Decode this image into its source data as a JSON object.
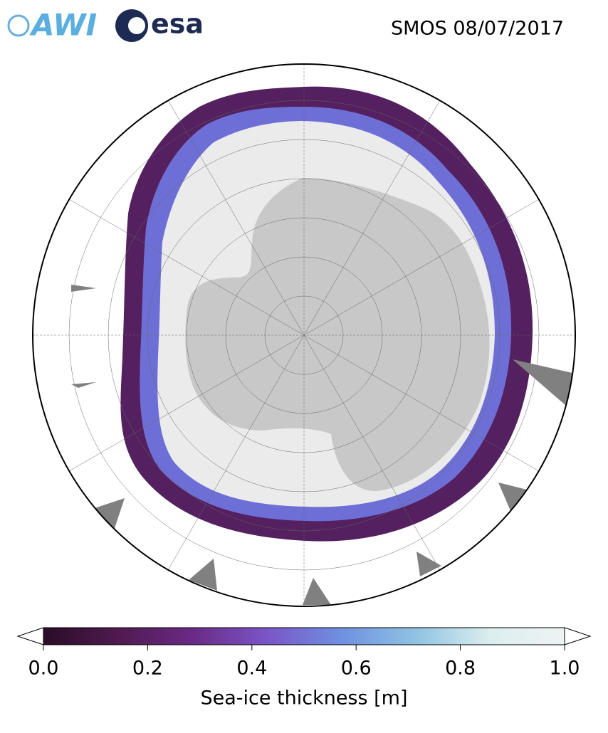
{
  "header": {
    "title": "SMOS 08/07/2017",
    "logos": [
      "AWI",
      "esa"
    ]
  },
  "colorbar": {
    "label": "Sea-ice thickness [m]",
    "lim": [
      0,
      1
    ],
    "ticks": [
      {
        "value": 0,
        "label": "0.0"
      },
      0.2,
      0.4,
      0.6,
      0.8,
      {
        "value": 1,
        "label": "1.0"
      }
    ],
    "colors": [
      "#2a0c28",
      "#4f1a4f",
      "#6a2a85",
      "#7a55c8",
      "#6f90e0",
      "#8fc3e2",
      "#dceeee",
      "#eef3f3"
    ],
    "extend": [
      "#ffffff",
      "#ffffff"
    ]
  }
}
